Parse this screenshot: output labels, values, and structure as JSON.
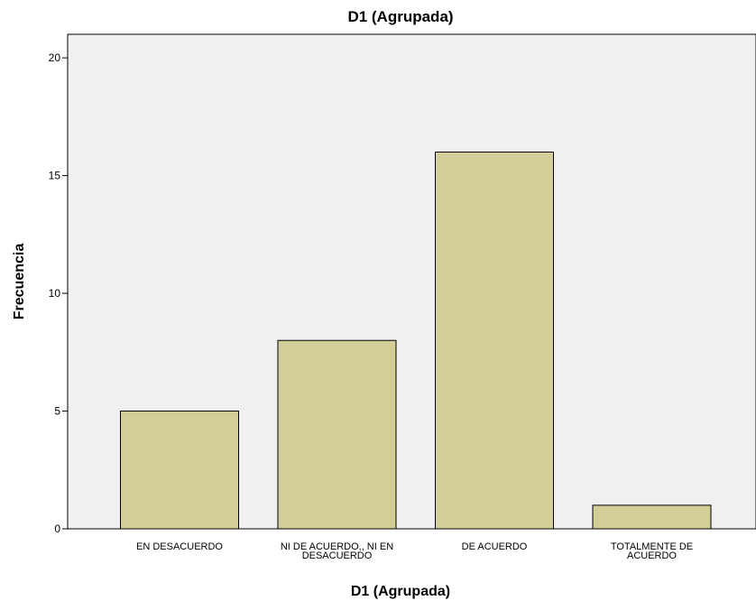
{
  "chart_data": {
    "type": "bar",
    "title": "D1 (Agrupada)",
    "xlabel": "D1 (Agrupada)",
    "ylabel": "Frecuencia",
    "categories": [
      [
        "EN DESACUERDO"
      ],
      [
        "NI DE ACUERDO,, NI EN",
        "DESACUERDO"
      ],
      [
        "DE ACUERDO"
      ],
      [
        "TOTALMENTE DE",
        "ACUERDO"
      ]
    ],
    "values": [
      5,
      8,
      16,
      1
    ],
    "ylim": [
      0,
      21
    ],
    "yticks": [
      0,
      5,
      10,
      15,
      20
    ],
    "grid": false,
    "colors": {
      "plot_background": "#f0f0f0",
      "bar_fill": "#d3ce97",
      "bar_stroke": "#000000"
    }
  }
}
